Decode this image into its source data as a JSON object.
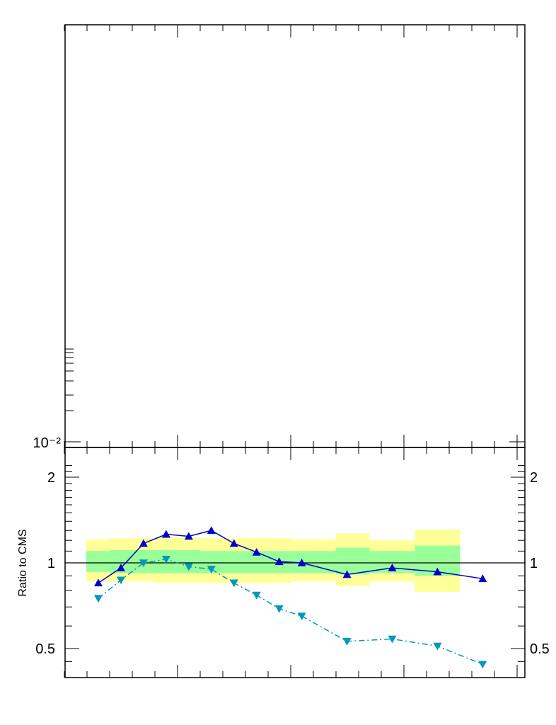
{
  "chart_data": [
    {
      "panel": "main",
      "type": "line",
      "yscale": "log",
      "tick_labels": {
        "y": [
          "10⁻²"
        ]
      },
      "series": []
    },
    {
      "panel": "ratio",
      "type": "line",
      "yscale": "log",
      "ylabel": "Ratio to CMS",
      "ylim": [
        0.42,
        2.3
      ],
      "tick_labels": {
        "y": [
          "0.5",
          "1",
          "2"
        ]
      },
      "reference_line": 1,
      "bands": [
        {
          "color": "#ffff99",
          "segments": [
            {
              "x0": 0.5,
              "x1": 1.5,
              "lo": 0.86,
              "hi": 1.21
            },
            {
              "x0": 1.5,
              "x1": 3.5,
              "lo": 0.86,
              "hi": 1.22
            },
            {
              "x0": 3.5,
              "x1": 5.5,
              "lo": 0.85,
              "hi": 1.23
            },
            {
              "x0": 5.5,
              "x1": 7.5,
              "lo": 0.85,
              "hi": 1.22
            },
            {
              "x0": 7.5,
              "x1": 9.5,
              "lo": 0.85,
              "hi": 1.22
            },
            {
              "x0": 9.5,
              "x1": 11.5,
              "lo": 0.86,
              "hi": 1.21
            },
            {
              "x0": 11.5,
              "x1": 13,
              "lo": 0.83,
              "hi": 1.27
            },
            {
              "x0": 13,
              "x1": 15,
              "lo": 0.86,
              "hi": 1.2
            },
            {
              "x0": 15,
              "x1": 17,
              "lo": 0.79,
              "hi": 1.31
            }
          ]
        },
        {
          "color": "#99ff99",
          "segments": [
            {
              "x0": 0.5,
              "x1": 1.5,
              "lo": 0.93,
              "hi": 1.1
            },
            {
              "x0": 1.5,
              "x1": 5.5,
              "lo": 0.92,
              "hi": 1.11
            },
            {
              "x0": 5.5,
              "x1": 11.5,
              "lo": 0.92,
              "hi": 1.1
            },
            {
              "x0": 11.5,
              "x1": 13,
              "lo": 0.91,
              "hi": 1.13
            },
            {
              "x0": 13,
              "x1": 15,
              "lo": 0.92,
              "hi": 1.1
            },
            {
              "x0": 15,
              "x1": 17,
              "lo": 0.9,
              "hi": 1.15
            }
          ]
        }
      ],
      "series": [
        {
          "color": "#0000cc",
          "marker": "triangle-up",
          "line": "solid",
          "x": [
            1,
            2,
            3,
            4,
            5,
            6,
            7,
            8,
            9,
            10,
            12,
            14,
            16,
            18
          ],
          "y": [
            0.85,
            0.96,
            1.17,
            1.26,
            1.24,
            1.3,
            1.17,
            1.09,
            1.01,
            1.0,
            0.91,
            0.96,
            0.93,
            0.88
          ]
        },
        {
          "color": "#0099bb",
          "marker": "triangle-down",
          "line": "dashdot",
          "x": [
            1,
            2,
            3,
            4,
            5,
            6,
            7,
            8,
            9,
            10,
            12,
            14,
            16,
            18
          ],
          "y": [
            0.75,
            0.87,
            1.0,
            1.03,
            0.97,
            0.95,
            0.85,
            0.77,
            0.69,
            0.65,
            0.53,
            0.54,
            0.51,
            0.44
          ]
        }
      ]
    }
  ]
}
